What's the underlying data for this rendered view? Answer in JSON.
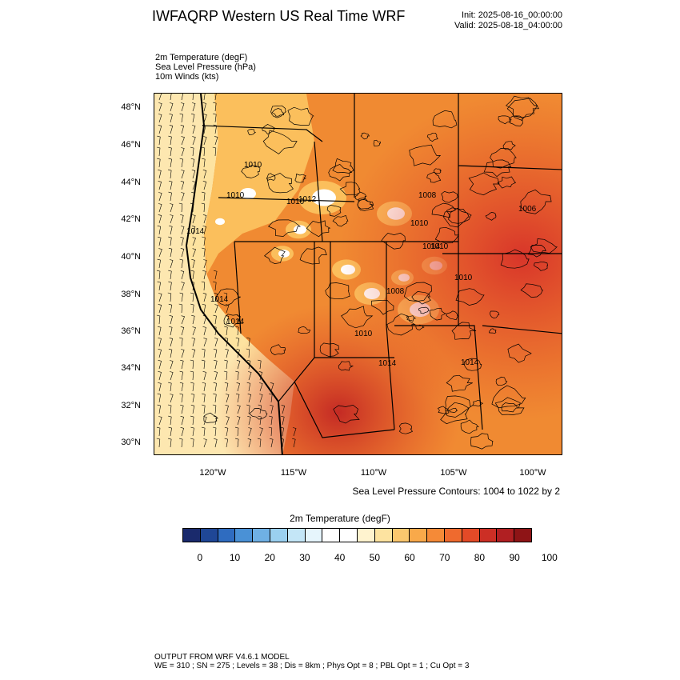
{
  "header": {
    "title": "IWFAQRP Western US Real Time WRF",
    "init": "Init: 2025-08-16_00:00:00",
    "valid": "Valid: 2025-08-18_04:00:00"
  },
  "fields": [
    "2m Temperature   (degF)",
    "Sea Level Pressure   (hPa)",
    "10m Winds   (kts)"
  ],
  "map": {
    "lat_labels": [
      "48°N",
      "46°N",
      "44°N",
      "42°N",
      "40°N",
      "38°N",
      "36°N",
      "34°N",
      "32°N",
      "30°N"
    ],
    "lon_labels": [
      "120°W",
      "115°W",
      "110°W",
      "105°W",
      "100°W"
    ],
    "pressure_labels": [
      "1010",
      "1010",
      "1014",
      "1014",
      "1010",
      "1012",
      "1010",
      "1008",
      "1014",
      "1014",
      "1010",
      "1008",
      "1014",
      "1010",
      "1014",
      "1010",
      "1006"
    ],
    "colors": {
      "hot": "#e34a27",
      "warm": "#f08a32",
      "mild": "#fbbf5c",
      "cool": "#fde3a0",
      "cold": "#ffffff",
      "ocean": "#fde7b0",
      "very_hot": "#c42a24"
    }
  },
  "contour_note": "Sea Level Pressure Contours: 1004 to 1022 by 2",
  "colorbar": {
    "title": "2m Temperature  (degF)",
    "colors": [
      "#1a2a6c",
      "#1f4796",
      "#2f6cc0",
      "#4a91d6",
      "#6fb0e4",
      "#9ad0f0",
      "#c4e6f7",
      "#e6f5fc",
      "#ffffff",
      "#ffffff",
      "#fff3cf",
      "#fde3a0",
      "#fbc76e",
      "#f9a94a",
      "#f58a37",
      "#ef6a2e",
      "#e34a27",
      "#cc2f25",
      "#b01f22",
      "#8e1416"
    ],
    "ticks": [
      "0",
      "10",
      "20",
      "30",
      "40",
      "50",
      "60",
      "70",
      "80",
      "90",
      "100"
    ]
  },
  "footer": {
    "line1": "OUTPUT FROM WRF V4.6.1 MODEL",
    "line2": "WE = 310 ; SN = 275 ; Levels = 38 ; Dis = 8km ; Phys Opt = 8 ; PBL Opt = 1 ; Cu Opt = 3"
  }
}
